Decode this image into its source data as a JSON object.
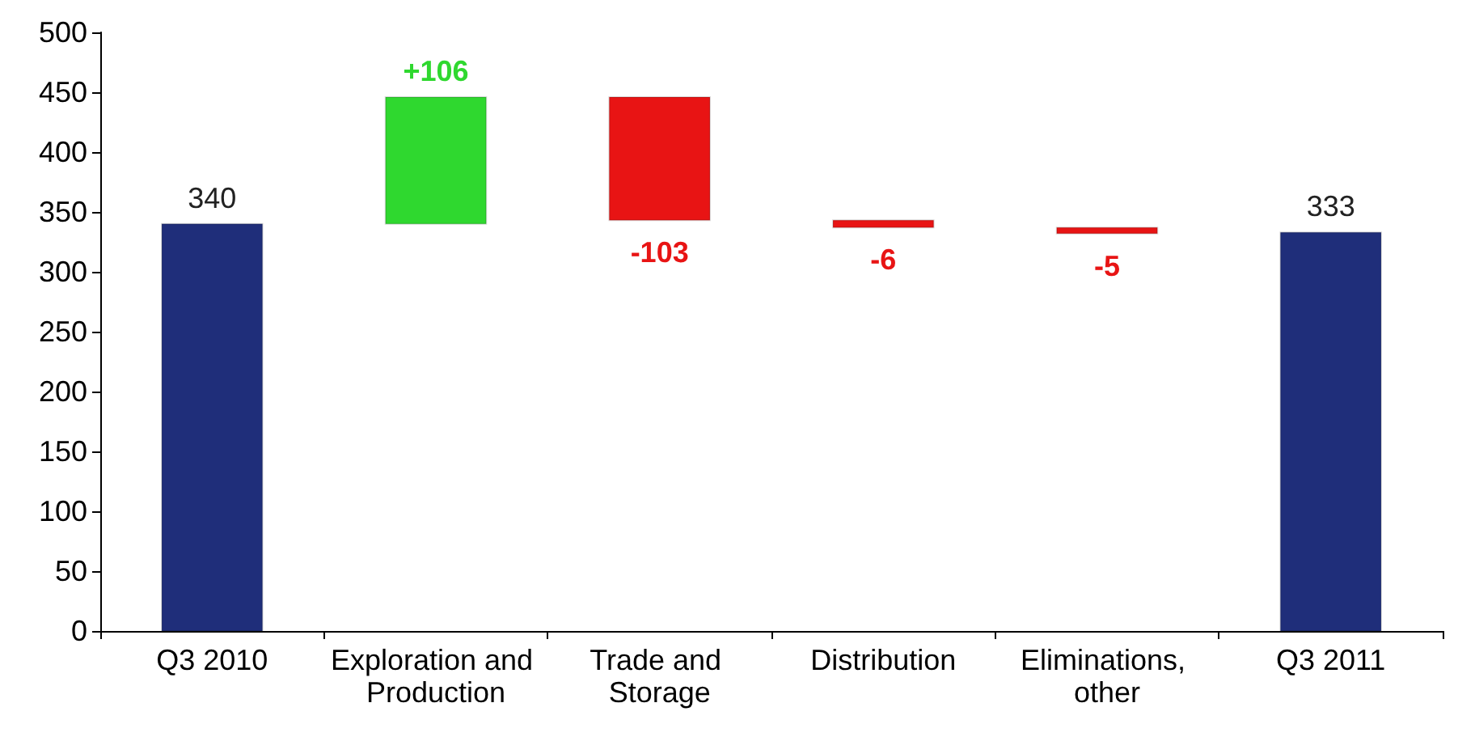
{
  "chart_data": {
    "type": "bar",
    "categories": [
      "Q3 2010",
      "Exploration and Production",
      "Trade and Storage",
      "Distribution",
      "Eliminations, other",
      "Q3 2011"
    ],
    "values": [
      340,
      106,
      -103,
      -6,
      -5,
      333
    ],
    "base": [
      0,
      340,
      446,
      343,
      337,
      0
    ],
    "colors": [
      "#1f2e7a",
      "#2fd82f",
      "#e81414",
      "#e81414",
      "#e81414",
      "#1f2e7a"
    ],
    "value_labels": [
      "340",
      "+106",
      "-103",
      "-6",
      "-5",
      "333"
    ],
    "ylim": [
      0,
      500
    ],
    "yticks": [
      0,
      50,
      100,
      150,
      200,
      250,
      300,
      350,
      400,
      450,
      500
    ]
  }
}
